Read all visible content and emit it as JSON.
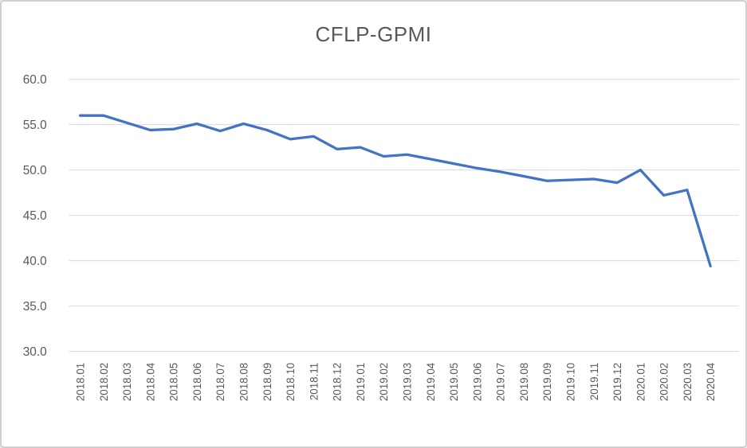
{
  "chart_data": {
    "type": "line",
    "title": "CFLP-GPMI",
    "categories": [
      "2018.01",
      "2018.02",
      "2018.03",
      "2018.04",
      "2018.05",
      "2018.06",
      "2018.07",
      "2018.08",
      "2018.09",
      "2018.10",
      "2018.11",
      "2018.12",
      "2019.01",
      "2019.02",
      "2019.03",
      "2019.04",
      "2019.05",
      "2019.06",
      "2019.07",
      "2019.08",
      "2019.09",
      "2019.10",
      "2019.11",
      "2019.12",
      "2020.01",
      "2020.02",
      "2020.03",
      "2020.04"
    ],
    "values": [
      56.0,
      56.0,
      55.2,
      54.4,
      54.5,
      55.1,
      54.3,
      55.1,
      54.4,
      53.4,
      53.7,
      52.3,
      52.5,
      51.5,
      51.7,
      51.2,
      50.7,
      50.2,
      49.8,
      49.3,
      48.8,
      48.9,
      49.0,
      48.6,
      50.0,
      47.2,
      47.8,
      39.4
    ],
    "series_name": "CFLP-GPMI",
    "xlabel": "",
    "ylabel": "",
    "yticks": [
      60,
      55,
      50,
      45,
      40,
      35,
      30
    ],
    "ylim": [
      30,
      62.5
    ],
    "grid": "horizontal",
    "legend": "none",
    "x_label_rotation": -90
  },
  "colors": {
    "line": "#4472C4",
    "grid": "#D9D9D9",
    "text": "#595959",
    "border": "#D0D0D0",
    "background": "#FFFFFF"
  }
}
